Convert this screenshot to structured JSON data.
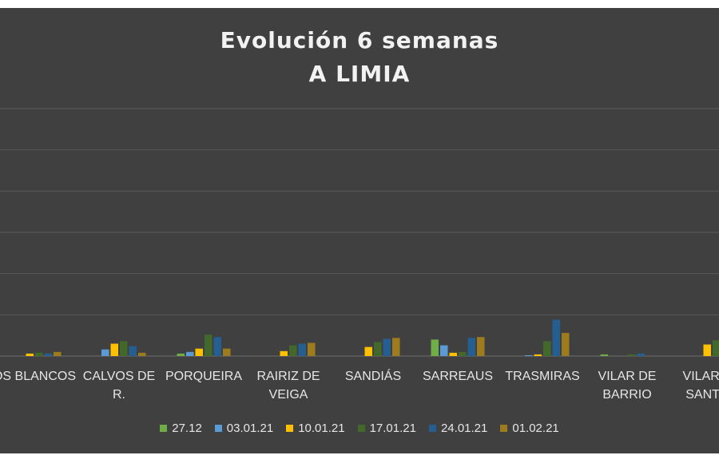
{
  "chart_data": {
    "type": "bar",
    "title": "Evolución 6 semanas",
    "subtitle": "A LIMIA",
    "categories": [
      "OS BLANCOS",
      "CALVOS DE R.",
      "PORQUEIRA",
      "RAIRIZ DE VEIGA",
      "SANDIÁS",
      "SARREAUS",
      "TRASMIRAS",
      "VILAR DE BARRIO",
      "VILAR DE SANTOS"
    ],
    "category_lines": [
      [
        "OS BLANCOS"
      ],
      [
        "CALVOS DE",
        "R."
      ],
      [
        "PORQUEIRA"
      ],
      [
        "RAIRIZ DE",
        "VEIGA"
      ],
      [
        "SANDIÁS"
      ],
      [
        "SARREAUS"
      ],
      [
        "TRASMIRAS"
      ],
      [
        "VILAR DE",
        "BARRIO"
      ],
      [
        "VILAR DE",
        "SANTOS"
      ]
    ],
    "series": [
      {
        "name": "27.12",
        "color": "#70ad47",
        "values": [
          0,
          0,
          3,
          0,
          0,
          20,
          0,
          2,
          0
        ]
      },
      {
        "name": "03.01.21",
        "color": "#5b9bd5",
        "values": [
          0,
          8,
          5,
          0,
          0,
          13,
          1,
          0,
          0
        ]
      },
      {
        "name": "10.01.21",
        "color": "#ffc000",
        "values": [
          3,
          15,
          9,
          6,
          11,
          4,
          2,
          0,
          14
        ]
      },
      {
        "name": "17.01.21",
        "color": "#43682b",
        "values": [
          4,
          18,
          26,
          13,
          17,
          5,
          18,
          2,
          19
        ]
      },
      {
        "name": "24.01.21",
        "color": "#255e91",
        "values": [
          3,
          12,
          23,
          15,
          21,
          22,
          44,
          3,
          0
        ]
      },
      {
        "name": "01.02.21",
        "color": "#9e7b1d",
        "values": [
          5,
          4,
          9,
          16,
          22,
          23,
          28,
          0,
          0
        ]
      }
    ],
    "ylim": [
      0,
      300
    ],
    "grid": true,
    "legend_position": "bottom",
    "xlabel": "",
    "ylabel": ""
  }
}
